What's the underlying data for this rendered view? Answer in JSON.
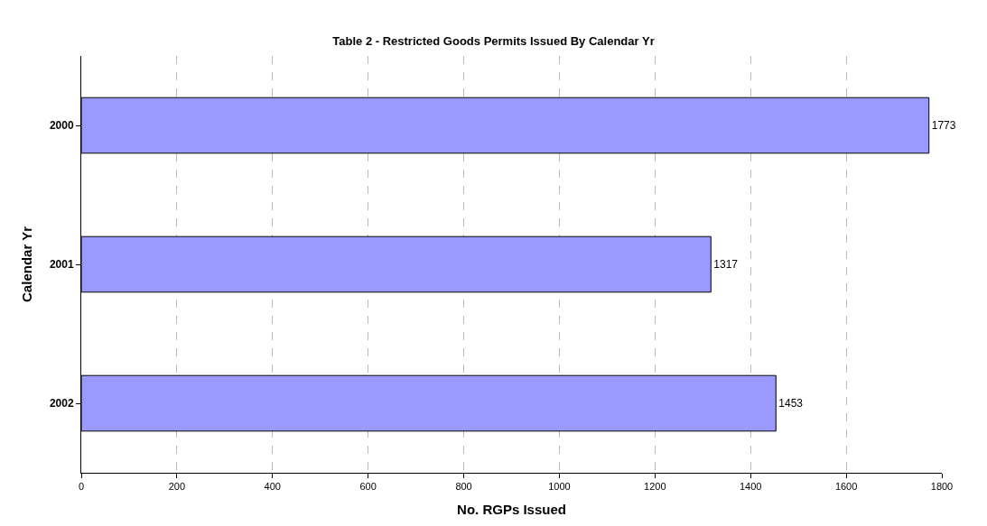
{
  "chart_data": {
    "type": "bar",
    "orientation": "horizontal",
    "title": "Table 2 - Restricted Goods Permits Issued By Calendar Yr",
    "xlabel": "No. RGPs Issued",
    "ylabel": "Calendar Yr",
    "categories": [
      "2000",
      "2001",
      "2002"
    ],
    "values": [
      1773,
      1317,
      1453
    ],
    "color": "#9999ff",
    "xlim": [
      0,
      1800
    ],
    "xticks": [
      0,
      200,
      400,
      600,
      800,
      1000,
      1200,
      1400,
      1600,
      1800
    ],
    "grid": "x",
    "data_labels": true
  }
}
